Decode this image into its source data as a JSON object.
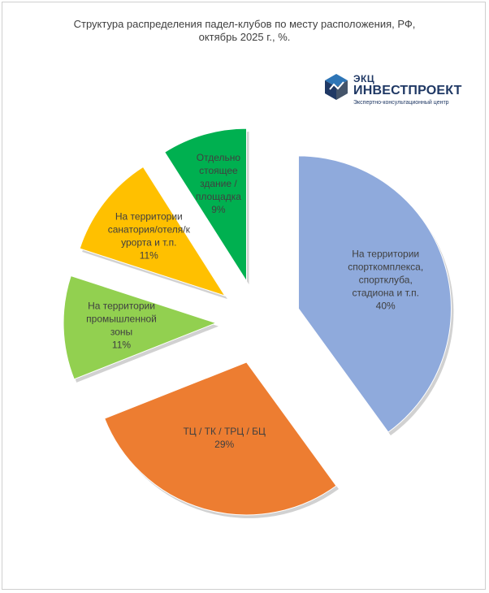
{
  "title_lines": [
    "Структура распределения падел-клубов  по месту расположения, РФ,",
    "октябрь 2025 г., %."
  ],
  "logo": {
    "line1": "ЭКЦ",
    "line2": "ИНВЕСТПРОЕКТ",
    "line3": "Экспертно-консультационный центр"
  },
  "colors": {
    "blue": "#8faadc",
    "orange": "#ed7d31",
    "lightgreen": "#92d050",
    "yellow": "#ffc000",
    "green": "#00b050",
    "logo_navy": "#1f3864"
  },
  "chart_data": {
    "type": "pie",
    "title": "Структура распределения падел-клубов  по месту расположения, РФ, октябрь 2025 г., %.",
    "legend": "none",
    "slices": [
      {
        "label_lines": [
          "На территории",
          "спорткомплекса,",
          "спортклуба,",
          "стадиона и т.п.",
          "40%"
        ],
        "value": 40,
        "color": "#8faadc"
      },
      {
        "label_lines": [
          "ТЦ / ТК / ТРЦ / БЦ",
          "29%"
        ],
        "value": 29,
        "color": "#ed7d31"
      },
      {
        "label_lines": [
          "На территории",
          "промышленной",
          "зоны",
          "11%"
        ],
        "value": 11,
        "color": "#92d050"
      },
      {
        "label_lines": [
          "На территории",
          "санатория/отеля/к",
          "урорта и т.п.",
          "11%"
        ],
        "value": 11,
        "color": "#ffc000"
      },
      {
        "label_lines": [
          "Отдельно",
          "стоящее",
          "здание /",
          "площадка",
          "9%"
        ],
        "value": 9,
        "color": "#00b050"
      }
    ]
  }
}
